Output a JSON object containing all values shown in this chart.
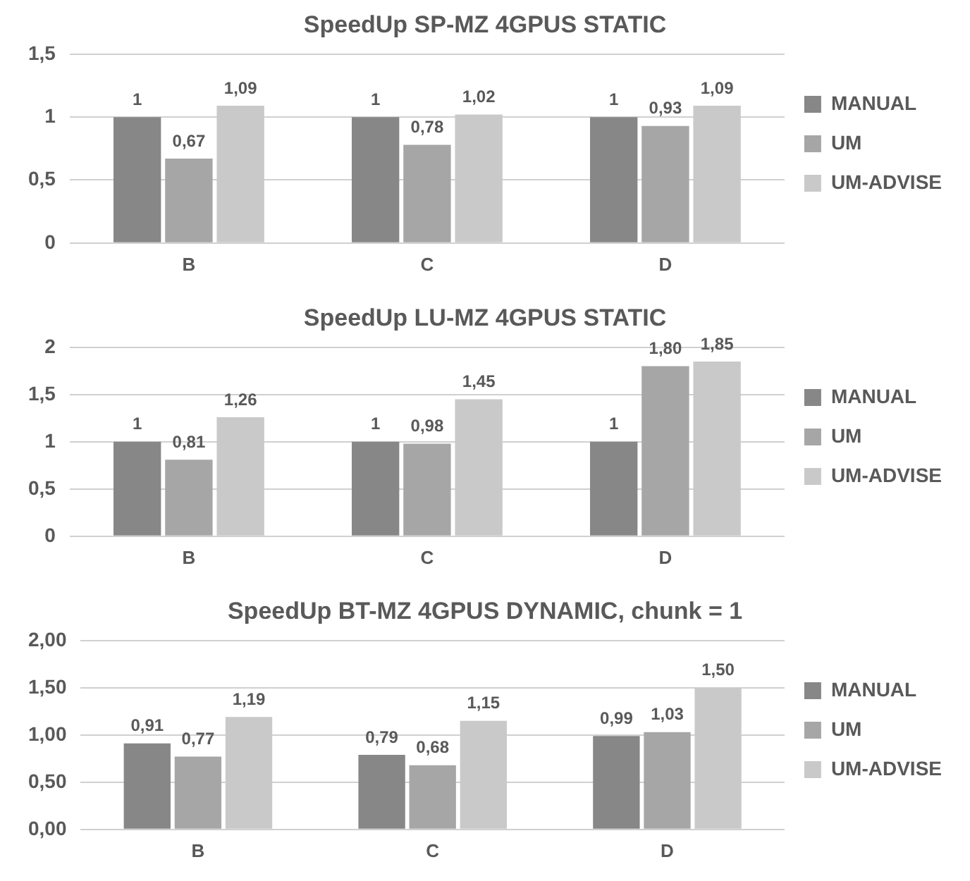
{
  "chart_data": [
    {
      "type": "bar",
      "title": "SpeedUp SP-MZ 4GPUS STATIC",
      "categories": [
        "B",
        "C",
        "D"
      ],
      "series": [
        {
          "name": "MANUAL",
          "color": "#878787",
          "values": [
            1,
            1,
            1
          ],
          "value_labels": [
            "1",
            "1",
            "1"
          ]
        },
        {
          "name": "UM",
          "color": "#a6a6a6",
          "values": [
            0.67,
            0.78,
            0.93
          ],
          "value_labels": [
            "0,67",
            "0,78",
            "0,93"
          ]
        },
        {
          "name": "UM-ADVISE",
          "color": "#c9c9c9",
          "values": [
            1.09,
            1.02,
            1.09
          ],
          "value_labels": [
            "1,09",
            "1,02",
            "1,09"
          ]
        }
      ],
      "ylim": [
        0,
        1.5
      ],
      "yticks": [
        0,
        {
          "value": 0.5,
          "label": "0,5"
        },
        1,
        {
          "value": 1.5,
          "label": "1,5"
        }
      ],
      "grid": "y",
      "legend": "right"
    },
    {
      "type": "bar",
      "title": "SpeedUp LU-MZ 4GPUS STATIC",
      "categories": [
        "B",
        "C",
        "D"
      ],
      "series": [
        {
          "name": "MANUAL",
          "color": "#878787",
          "values": [
            1,
            1,
            1
          ],
          "value_labels": [
            "1",
            "1",
            "1"
          ]
        },
        {
          "name": "UM",
          "color": "#a6a6a6",
          "values": [
            0.81,
            0.98,
            1.8
          ],
          "value_labels": [
            "0,81",
            "0,98",
            "1,80"
          ]
        },
        {
          "name": "UM-ADVISE",
          "color": "#c9c9c9",
          "values": [
            1.26,
            1.45,
            1.85
          ],
          "value_labels": [
            "1,26",
            "1,45",
            "1,85"
          ]
        }
      ],
      "ylim": [
        0,
        2
      ],
      "yticks": [
        0,
        {
          "value": 0.5,
          "label": "0,5"
        },
        1,
        {
          "value": 1.5,
          "label": "1,5"
        },
        2
      ],
      "grid": "y",
      "legend": "right"
    },
    {
      "type": "bar",
      "title": "SpeedUp BT-MZ 4GPUS DYNAMIC, chunk = 1",
      "categories": [
        "B",
        "C",
        "D"
      ],
      "series": [
        {
          "name": "MANUAL",
          "color": "#878787",
          "values": [
            0.91,
            0.79,
            0.99
          ],
          "value_labels": [
            "0,91",
            "0,79",
            "0,99"
          ]
        },
        {
          "name": "UM",
          "color": "#a6a6a6",
          "values": [
            0.77,
            0.68,
            1.03
          ],
          "value_labels": [
            "0,77",
            "0,68",
            "1,03"
          ]
        },
        {
          "name": "UM-ADVISE",
          "color": "#c9c9c9",
          "values": [
            1.19,
            1.15,
            1.5
          ],
          "value_labels": [
            "1,19",
            "1,15",
            "1,50"
          ]
        }
      ],
      "ylim": [
        0,
        2
      ],
      "yticks": [
        {
          "value": 0,
          "label": "0,00"
        },
        {
          "value": 0.5,
          "label": "0,50"
        },
        {
          "value": 1,
          "label": "1,00"
        },
        {
          "value": 1.5,
          "label": "1,50"
        },
        {
          "value": 2,
          "label": "2,00"
        }
      ],
      "grid": "y",
      "legend": "right"
    }
  ]
}
